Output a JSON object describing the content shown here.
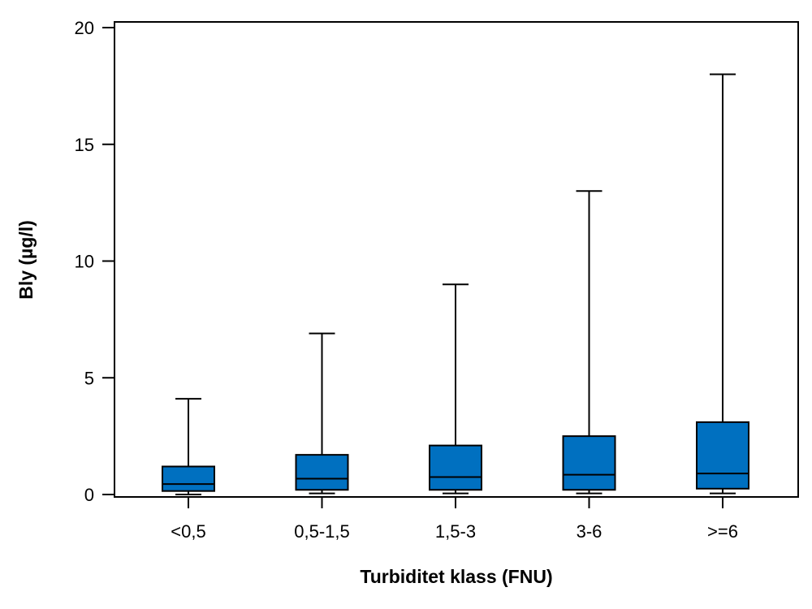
{
  "chart_data": {
    "type": "boxplot",
    "title": "",
    "xlabel": "Turbiditet klass (FNU)",
    "ylabel": "Bly (µg/l)",
    "ylim": [
      0,
      20
    ],
    "yticks": [
      0,
      5,
      10,
      15,
      20
    ],
    "ytick_labels": [
      "0",
      "5",
      "10",
      "15",
      "20"
    ],
    "grid": false,
    "legend": "none",
    "box_color": "#0070c0",
    "line_color": "#000000",
    "categories": [
      "<0,5",
      "0,5-1,5",
      "1,5-3",
      "3-6",
      ">=6"
    ],
    "boxes": [
      {
        "category": "<0,5",
        "whisker_low": 0.0,
        "q1": 0.15,
        "median": 0.45,
        "q3": 1.2,
        "whisker_high": 4.1
      },
      {
        "category": "0,5-1,5",
        "whisker_low": 0.05,
        "q1": 0.2,
        "median": 0.68,
        "q3": 1.7,
        "whisker_high": 6.9
      },
      {
        "category": "1,5-3",
        "whisker_low": 0.05,
        "q1": 0.2,
        "median": 0.75,
        "q3": 2.1,
        "whisker_high": 9.0
      },
      {
        "category": "3-6",
        "whisker_low": 0.05,
        "q1": 0.2,
        "median": 0.85,
        "q3": 2.5,
        "whisker_high": 13.0
      },
      {
        "category": ">=6",
        "whisker_low": 0.05,
        "q1": 0.25,
        "median": 0.9,
        "q3": 3.1,
        "whisker_high": 18.0
      }
    ]
  }
}
